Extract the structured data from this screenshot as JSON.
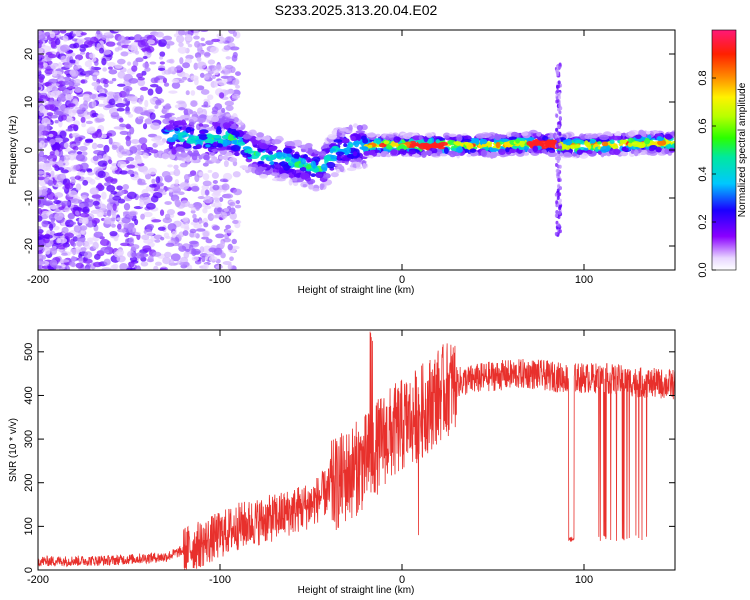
{
  "title": "S233.2025.313.20.04.E02",
  "chart_data": [
    {
      "type": "heatmap",
      "xlabel": "Height of straight line (km)",
      "ylabel": "Frequency (Hz)",
      "xlim": [
        -200,
        150
      ],
      "ylim": [
        -25,
        25
      ],
      "xticks": [
        -200,
        -100,
        0,
        100
      ],
      "yticks": [
        -20,
        -10,
        0,
        10,
        20
      ],
      "colorbar": {
        "label": "Normalized spectral amplitude",
        "range": [
          0.0,
          1.0
        ],
        "ticks": [
          0.0,
          0.2,
          0.4,
          0.6,
          0.8
        ]
      },
      "band_center_points": [
        {
          "x": -125,
          "y": 3
        },
        {
          "x": -110,
          "y": 2
        },
        {
          "x": -95,
          "y": 3
        },
        {
          "x": -80,
          "y": -1
        },
        {
          "x": -65,
          "y": -2
        },
        {
          "x": -55,
          "y": -3
        },
        {
          "x": -45,
          "y": -4
        },
        {
          "x": -35,
          "y": 0
        },
        {
          "x": -20,
          "y": 1
        },
        {
          "x": 0,
          "y": 1
        },
        {
          "x": 25,
          "y": 1
        },
        {
          "x": 50,
          "y": 1
        },
        {
          "x": 75,
          "y": 1.5
        },
        {
          "x": 90,
          "y": 1
        },
        {
          "x": 110,
          "y": 1
        },
        {
          "x": 130,
          "y": 1.5
        },
        {
          "x": 150,
          "y": 1.5
        }
      ]
    },
    {
      "type": "line",
      "xlabel": "Height of straight line (km)",
      "ylabel": "SNR (10 * v/v)",
      "xlim": [
        -200,
        150
      ],
      "ylim": [
        0,
        550
      ],
      "xticks": [
        -200,
        -100,
        0,
        100
      ],
      "yticks": [
        0,
        100,
        200,
        300,
        400,
        500
      ],
      "color": "#e8302c",
      "envelope": [
        {
          "x": -200,
          "y": 20
        },
        {
          "x": -160,
          "y": 22
        },
        {
          "x": -130,
          "y": 30
        },
        {
          "x": -110,
          "y": 60
        },
        {
          "x": -90,
          "y": 100
        },
        {
          "x": -70,
          "y": 120
        },
        {
          "x": -50,
          "y": 150
        },
        {
          "x": -35,
          "y": 200
        },
        {
          "x": -20,
          "y": 250
        },
        {
          "x": -10,
          "y": 300
        },
        {
          "x": 0,
          "y": 330
        },
        {
          "x": 10,
          "y": 360
        },
        {
          "x": 20,
          "y": 400
        },
        {
          "x": 30,
          "y": 430
        },
        {
          "x": 50,
          "y": 445
        },
        {
          "x": 70,
          "y": 450
        },
        {
          "x": 90,
          "y": 440
        },
        {
          "x": 110,
          "y": 440
        },
        {
          "x": 130,
          "y": 430
        },
        {
          "x": 150,
          "y": 425
        }
      ]
    }
  ]
}
